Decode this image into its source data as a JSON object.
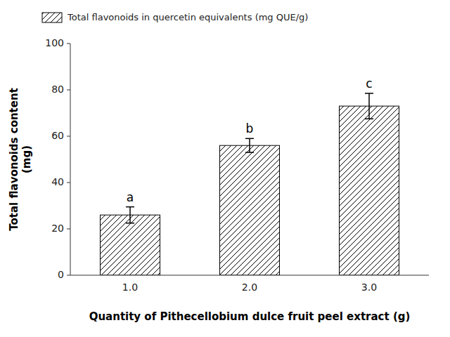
{
  "chart_data": {
    "type": "bar",
    "categories": [
      "1.0",
      "2.0",
      "3.0"
    ],
    "series": [
      {
        "name": "Total flavonoids in quercetin equivalents (mg QUE/g)",
        "color": "#ffffff",
        "values": [
          26.0,
          56.0,
          73.0
        ],
        "errors": [
          3.5,
          3.0,
          5.5
        ],
        "letters": [
          "a",
          "b",
          "c"
        ]
      }
    ],
    "xlabel": "Quantity of Pithecellobium dulce fruit peel extract (g)",
    "ylabel": "Total flavonoids content\n(mg)",
    "ylim": [
      0,
      100
    ],
    "yticks": [
      0,
      20,
      40,
      60,
      80,
      100
    ],
    "grid": false,
    "legend": "upper left"
  }
}
